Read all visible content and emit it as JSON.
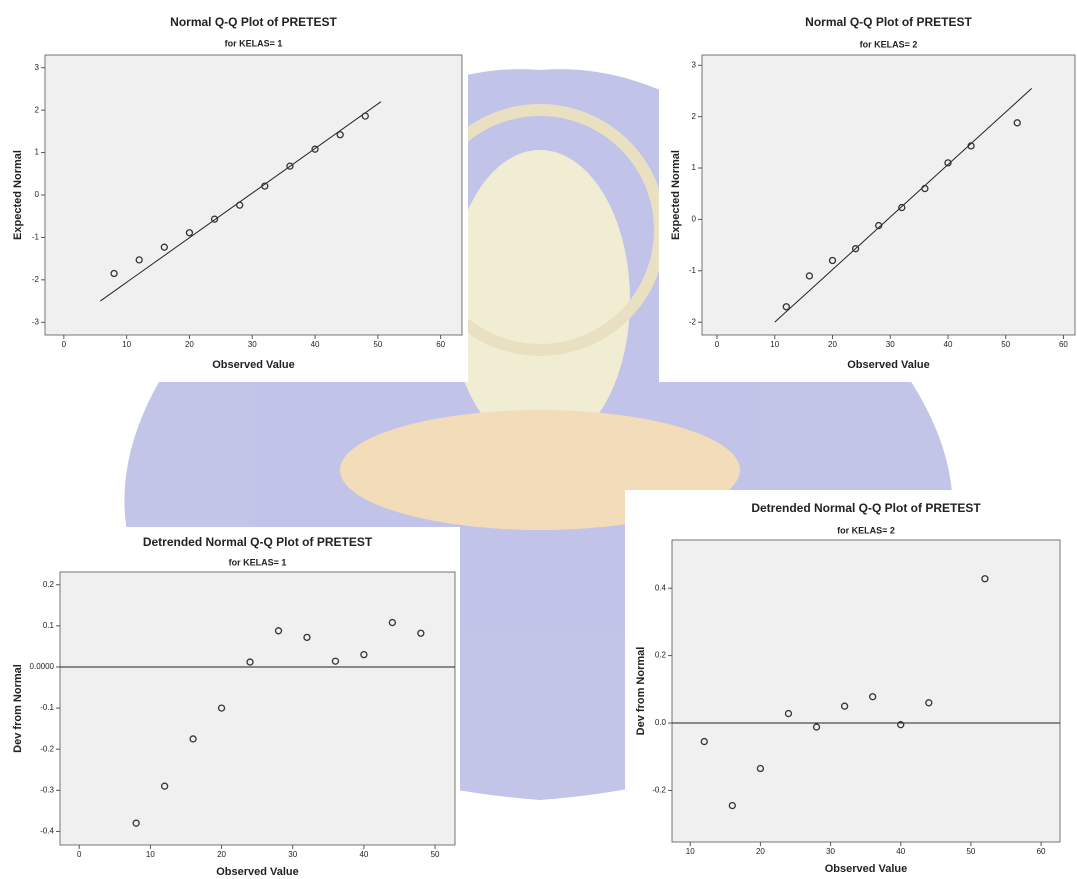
{
  "chart_data": [
    {
      "type": "scatter",
      "title": "Normal Q-Q Plot of PRETEST",
      "subtitle": "for KELAS= 1",
      "x_label": "Observed Value",
      "y_label": "Expected Normal",
      "x": [
        8,
        12,
        16,
        20,
        24,
        28,
        32,
        36,
        40,
        44,
        48
      ],
      "values": [
        -1.85,
        -1.53,
        -1.23,
        -0.89,
        -0.57,
        -0.24,
        0.21,
        0.68,
        1.08,
        1.42,
        1.86
      ],
      "reference_line": {
        "x": [
          5.8,
          50.5
        ],
        "y": [
          -2.5,
          2.2
        ]
      },
      "xlim": [
        -3,
        63.4
      ],
      "ylim": [
        -3.3,
        3.3
      ],
      "xticks": [
        0,
        10,
        20,
        30,
        40,
        50,
        60
      ],
      "yticks": [
        -3,
        -2,
        -1,
        0,
        1,
        2,
        3
      ],
      "color": "#333333"
    },
    {
      "type": "scatter",
      "title": "Normal Q-Q Plot of PRETEST",
      "subtitle": "for KELAS= 2",
      "x_label": "Observed Value",
      "y_label": "Expected Normal",
      "x": [
        12,
        16,
        20,
        24,
        28,
        32,
        36,
        40,
        44,
        52
      ],
      "values": [
        -1.7,
        -1.1,
        -0.8,
        -0.57,
        -0.12,
        0.23,
        0.6,
        1.1,
        1.43,
        1.88
      ],
      "reference_line": {
        "x": [
          10,
          54.5
        ],
        "y": [
          -2,
          2.55
        ]
      },
      "xlim": [
        -2.6,
        62
      ],
      "ylim": [
        -2.25,
        3.2
      ],
      "xticks": [
        0,
        10,
        20,
        30,
        40,
        50,
        60
      ],
      "yticks": [
        -2,
        -1,
        0,
        1,
        2,
        3
      ],
      "color": "#333333"
    },
    {
      "type": "scatter",
      "title": "Detrended Normal Q-Q Plot of PRETEST",
      "subtitle": "for KELAS= 1",
      "x_label": "Observed Value",
      "y_label": "Dev from Normal",
      "x": [
        8,
        12,
        16,
        20,
        24,
        28,
        32,
        36,
        40,
        44,
        48
      ],
      "values": [
        -0.38,
        -0.29,
        -0.175,
        -0.1,
        0.012,
        0.088,
        0.072,
        0.014,
        0.03,
        0.108,
        0.082
      ],
      "reference_line": {
        "y": 0
      },
      "xlim": [
        -2.7,
        52.8
      ],
      "ylim": [
        -0.433,
        0.231
      ],
      "xticks": [
        0,
        10,
        20,
        30,
        40,
        50
      ],
      "yticks": [
        -0.4,
        -0.3,
        -0.2,
        -0.1,
        {
          "value": 0,
          "label": "0.0000"
        },
        0.1,
        0.2
      ],
      "color": "#333333"
    },
    {
      "type": "scatter",
      "title": "Detrended Normal Q-Q Plot of PRETEST",
      "subtitle": "for KELAS= 2",
      "x_label": "Observed Value",
      "y_label": "Dev from Normal",
      "x": [
        12,
        16,
        20,
        24,
        28,
        32,
        36,
        40,
        44,
        52
      ],
      "values": [
        -0.055,
        -0.245,
        -0.135,
        0.028,
        -0.012,
        0.05,
        0.078,
        -0.005,
        0.06,
        0.428
      ],
      "reference_line": {
        "y": 0
      },
      "xlim": [
        7.4,
        62.7
      ],
      "ylim": [
        -0.353,
        0.543
      ],
      "xticks": [
        10,
        20,
        30,
        40,
        50,
        60
      ],
      "yticks": [
        -0.2,
        {
          "value": 0,
          "label": "0.0"
        },
        0.2,
        0.4
      ],
      "color": "#333333"
    }
  ]
}
